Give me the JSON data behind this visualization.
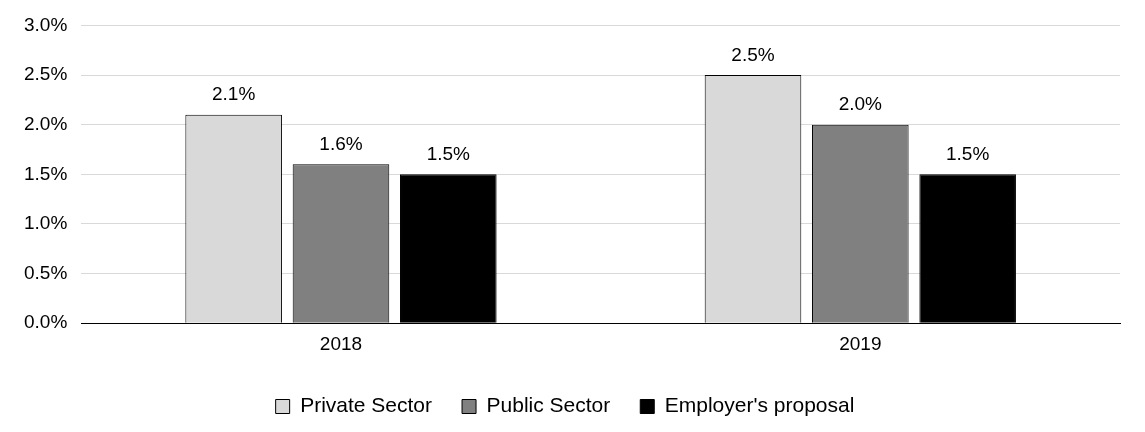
{
  "chart_data": {
    "type": "bar",
    "categories": [
      "2018",
      "2019"
    ],
    "series": [
      {
        "name": "Private Sector",
        "color": "#d9d9d9",
        "values": [
          2.1,
          2.5
        ],
        "value_labels": [
          "2.1%",
          "2.5%"
        ]
      },
      {
        "name": "Public Sector",
        "color": "#808080",
        "values": [
          1.6,
          2.0
        ],
        "value_labels": [
          "1.6%",
          "2.0%"
        ]
      },
      {
        "name": "Employer's proposal",
        "color": "#000000",
        "values": [
          1.5,
          1.5
        ],
        "value_labels": [
          "1.5%",
          "1.5%"
        ]
      }
    ],
    "ylim": [
      0,
      3
    ],
    "yticks": [
      {
        "value": 0,
        "label": "0.0%"
      },
      {
        "value": 0.5,
        "label": "0.5%"
      },
      {
        "value": 1,
        "label": "1.0%"
      },
      {
        "value": 1.5,
        "label": "1.5%"
      },
      {
        "value": 2,
        "label": "2.0%"
      },
      {
        "value": 2.5,
        "label": "2.5%"
      },
      {
        "value": 3,
        "label": "3.0%"
      }
    ],
    "grid": "y",
    "legend": "bottom"
  }
}
